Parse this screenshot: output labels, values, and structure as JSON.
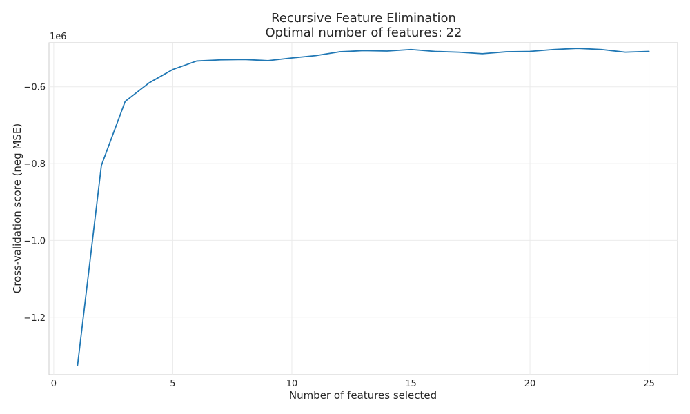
{
  "chart_data": {
    "type": "line",
    "title": "Recursive Feature Elimination",
    "subtitle": "Optimal number of features: 22",
    "xlabel": "Number of features selected",
    "ylabel": "Cross-validation score (neg MSE)",
    "y_offset_label": "1e6",
    "xlim": [
      -0.2,
      26.2
    ],
    "ylim": [
      -1.3495,
      -0.4855
    ],
    "grid": true,
    "x_ticks": [
      0,
      5,
      10,
      15,
      20,
      25
    ],
    "x_tick_labels": [
      "0",
      "5",
      "10",
      "15",
      "20",
      "25"
    ],
    "y_ticks": [
      -0.6,
      -0.8,
      -1.0,
      -1.2
    ],
    "y_tick_labels": [
      "−0.6",
      "−0.8",
      "−1.0",
      "−1.2"
    ],
    "series": [
      {
        "color": "#1f77b4",
        "x": [
          1,
          2,
          3,
          4,
          5,
          6,
          7,
          8,
          9,
          10,
          11,
          12,
          13,
          14,
          15,
          16,
          17,
          18,
          19,
          20,
          21,
          22,
          23,
          24,
          25
        ],
        "y": [
          -1.325,
          -0.805,
          -0.638,
          -0.59,
          -0.555,
          -0.533,
          -0.53,
          -0.529,
          -0.532,
          -0.525,
          -0.519,
          -0.509,
          -0.506,
          -0.507,
          -0.503,
          -0.508,
          -0.51,
          -0.514,
          -0.509,
          -0.508,
          -0.503,
          -0.5,
          -0.503,
          -0.51,
          -0.508
        ]
      }
    ]
  }
}
